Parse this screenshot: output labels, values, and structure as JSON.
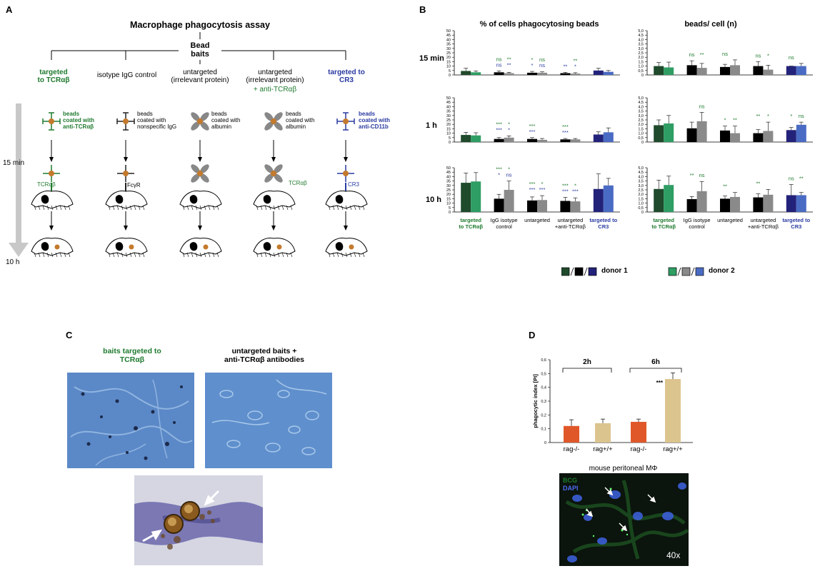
{
  "panelA": {
    "letter": "A",
    "title": "Macrophage phagocytosis assay",
    "root": "Bead\nbaits",
    "time_top": "15 min",
    "time_bottom": "10 h",
    "columns": [
      {
        "header": "targeted\nto TCRαβ",
        "desc": "beads\ncoated with\nanti-TCRαβ",
        "receptor": "TCRαβ"
      },
      {
        "header": "isotype IgG control",
        "desc": "beads\ncoated with\nnonspecific IgG",
        "receptor": "FcγR"
      },
      {
        "header": "untargeted\n(irrelevant protein)",
        "desc": "beads\ncoated with\nalbumin",
        "receptor": ""
      },
      {
        "header": "untargeted\n(irrelevant protein)",
        "header_extra": "+ anti-TCRαβ",
        "desc": "beads\ncoated with\nalbumin",
        "receptor": "TCRαβ"
      },
      {
        "header": "targeted to\nCR3",
        "desc": "beads\ncoated with\nanti-CD11b",
        "receptor": "CR3"
      }
    ]
  },
  "panelB": {
    "letter": "B",
    "left_title": "% of cells phagocytosing beads",
    "right_title": "beads/ cell (n)",
    "row_labels": [
      "15 min",
      "1 h",
      "10 h"
    ],
    "categories": [
      "targeted\nto TCRαβ",
      "IgG isotype\ncontrol",
      "untargeted",
      "untargeted\n+anti-TCRαβ",
      "targeted to\nCR3"
    ],
    "legend": {
      "donor1": "donor 1",
      "donor2": "donor 2"
    },
    "colors": {
      "d1": [
        "#1f4a2c",
        "#000000",
        "#000000",
        "#000000",
        "#23227a"
      ],
      "d2": [
        "#2f9e64",
        "#8a8a8a",
        "#8a8a8a",
        "#8a8a8a",
        "#4a6bc4"
      ]
    },
    "left_ticks": [
      "0",
      "5",
      "10",
      "15",
      "20",
      "25",
      "30",
      "35",
      "40",
      "45",
      "50"
    ],
    "right_ticks": [
      "0",
      "0,5",
      "1,0",
      "1,5",
      "2,0",
      "2,5",
      "3,0",
      "3,5",
      "4,0",
      "4,5",
      "5,0"
    ]
  },
  "chart_data": [
    {
      "type": "bar",
      "title": "% of cells phagocytosing beads",
      "row": "15 min",
      "ylim": [
        0,
        50
      ],
      "categories": [
        "targeted to TCRαβ",
        "IgG isotype control",
        "untargeted",
        "untargeted +anti-TCRαβ",
        "targeted to CR3"
      ],
      "series": [
        {
          "name": "donor 1",
          "values": [
            4.5,
            3,
            2.5,
            2,
            5
          ],
          "errors": [
            3,
            1.5,
            1.5,
            1,
            2.5
          ]
        },
        {
          "name": "donor 2",
          "values": [
            3,
            2,
            2.5,
            1.5,
            3.5
          ],
          "errors": [
            1.5,
            1,
            1,
            1,
            1.5
          ]
        }
      ],
      "sig_d1": [
        "",
        "ns",
        "*",
        "",
        ""
      ],
      "sig_d1b": [
        "",
        "**",
        "ns",
        "**",
        ""
      ],
      "sig_d2": [
        "",
        "ns",
        "*",
        "**",
        ""
      ],
      "sig_d2b": [
        "",
        "**",
        "ns",
        "*",
        ""
      ]
    },
    {
      "type": "bar",
      "title": "% of cells phagocytosing beads",
      "row": "1 h",
      "ylim": [
        0,
        50
      ],
      "categories": [
        "targeted to TCRαβ",
        "IgG isotype control",
        "untargeted",
        "untargeted +anti-TCRαβ",
        "targeted to CR3"
      ],
      "series": [
        {
          "name": "donor 1",
          "values": [
            8,
            3.5,
            3.5,
            3,
            8.5
          ],
          "errors": [
            3,
            1.5,
            1.5,
            1,
            3
          ]
        },
        {
          "name": "donor 2",
          "values": [
            7.5,
            5,
            2.5,
            3,
            11
          ],
          "errors": [
            3,
            2,
            1.5,
            1,
            5
          ]
        }
      ],
      "sig_d1": [
        "",
        "***",
        "***",
        "***",
        ""
      ],
      "sig_d1b": [
        "",
        "*",
        "",
        "",
        ""
      ],
      "sig_d2": [
        "",
        "***",
        "***",
        "***",
        ""
      ],
      "sig_d2b": [
        "",
        "*",
        "",
        "",
        ""
      ]
    },
    {
      "type": "bar",
      "title": "% of cells phagocytosing beads",
      "row": "10 h",
      "ylim": [
        0,
        50
      ],
      "categories": [
        "targeted to TCRαβ",
        "IgG isotype control",
        "untargeted",
        "untargeted +anti-TCRαβ",
        "targeted to CR3"
      ],
      "series": [
        {
          "name": "donor 1",
          "values": [
            33,
            15,
            13,
            12.5,
            26
          ],
          "errors": [
            11,
            5,
            4,
            4,
            17
          ]
        },
        {
          "name": "donor 2",
          "values": [
            34.5,
            25,
            13.5,
            12,
            30
          ],
          "errors": [
            10,
            10,
            5,
            4,
            8
          ]
        }
      ],
      "sig_d1": [
        "",
        "***",
        "***",
        "***",
        ""
      ],
      "sig_d1b": [
        "",
        "*",
        "*",
        "*",
        ""
      ],
      "sig_d2": [
        "",
        "*",
        "***",
        "***",
        ""
      ],
      "sig_d2b": [
        "",
        "ns",
        "***",
        "***",
        ""
      ]
    },
    {
      "type": "bar",
      "title": "beads/ cell (n)",
      "row": "15 min",
      "ylim": [
        0,
        5
      ],
      "categories": [
        "targeted to TCRαβ",
        "IgG isotype control",
        "untargeted",
        "untargeted +anti-TCRαβ",
        "targeted to CR3"
      ],
      "series": [
        {
          "name": "donor 1",
          "values": [
            1.0,
            1.1,
            0.9,
            1.0,
            1.0
          ],
          "errors": [
            0.4,
            0.5,
            0.3,
            0.5,
            0.0
          ]
        },
        {
          "name": "donor 2",
          "values": [
            0.85,
            0.8,
            1.1,
            0.6,
            1.0
          ],
          "errors": [
            0.6,
            0.5,
            0.6,
            0.5,
            0.3
          ]
        }
      ],
      "sig_d1": [
        "",
        "ns",
        "ns",
        "ns",
        "ns"
      ],
      "sig_d2": [
        "",
        "**",
        "",
        "*",
        ""
      ]
    },
    {
      "type": "bar",
      "title": "beads/ cell (n)",
      "row": "1 h",
      "ylim": [
        0,
        5
      ],
      "categories": [
        "targeted to TCRαβ",
        "IgG isotype control",
        "untargeted",
        "untargeted +anti-TCRαβ",
        "targeted to CR3"
      ],
      "series": [
        {
          "name": "donor 1",
          "values": [
            1.9,
            1.55,
            1.3,
            1.0,
            1.35
          ],
          "errors": [
            0.6,
            0.7,
            0.5,
            0.4,
            0.3
          ]
        },
        {
          "name": "donor 2",
          "values": [
            2.1,
            2.35,
            1.0,
            1.25,
            1.95
          ],
          "errors": [
            0.9,
            1.0,
            0.8,
            1.0,
            0.3
          ]
        }
      ],
      "sig_d1": [
        "",
        "",
        "*",
        "**",
        "*"
      ],
      "sig_d2": [
        "",
        "ns",
        "**",
        "*",
        "ns"
      ]
    },
    {
      "type": "bar",
      "title": "beads/ cell (n)",
      "row": "10 h",
      "ylim": [
        0,
        5
      ],
      "categories": [
        "targeted to TCRαβ",
        "IgG isotype control",
        "untargeted",
        "untargeted +anti-TCRαβ",
        "targeted to CR3"
      ],
      "series": [
        {
          "name": "donor 1",
          "values": [
            2.6,
            1.45,
            1.5,
            1.65,
            1.9
          ],
          "errors": [
            1.0,
            0.3,
            0.3,
            0.4,
            1.2
          ]
        },
        {
          "name": "donor 2",
          "values": [
            3.05,
            2.35,
            1.7,
            1.95,
            1.9
          ],
          "errors": [
            1.0,
            1.1,
            0.5,
            0.6,
            0.3
          ]
        }
      ],
      "sig_d1": [
        "",
        "**",
        "**",
        "**",
        "ns"
      ],
      "sig_d2": [
        "",
        "ns",
        "",
        "",
        "**"
      ]
    },
    {
      "type": "bar",
      "title": "",
      "ylabel": "phagocytic index [PI]",
      "ylim": [
        0,
        0.6
      ],
      "groups": [
        "2h",
        "6h"
      ],
      "categories": [
        "rag-/-",
        "rag+/+",
        "rag-/-",
        "rag+/+"
      ],
      "values": [
        0.12,
        0.14,
        0.15,
        0.46
      ],
      "errors": [
        0.045,
        0.03,
        0.02,
        0.045
      ],
      "colors": [
        "#e0582a",
        "#dcc48e",
        "#e0582a",
        "#dcc48e"
      ],
      "annotations": [
        "",
        "",
        "",
        "***"
      ],
      "yticks": [
        "0",
        "0,1",
        "0,2",
        "0,3",
        "0,4",
        "0,5",
        "0,6"
      ]
    }
  ],
  "panelC": {
    "letter": "C",
    "label_left": "baits targeted to\nTCRαβ",
    "label_right": "untargeted baits +\nanti-TCRαβ antibodies"
  },
  "panelD": {
    "letter": "D",
    "group_2h": "2h",
    "group_6h": "6h",
    "ylabel": "phagocytic index [PI]",
    "micro_title": "mouse peritoneal MΦ",
    "micro_bcg": "BCG",
    "micro_dapi": "DAPI",
    "micro_mag": "40x"
  }
}
